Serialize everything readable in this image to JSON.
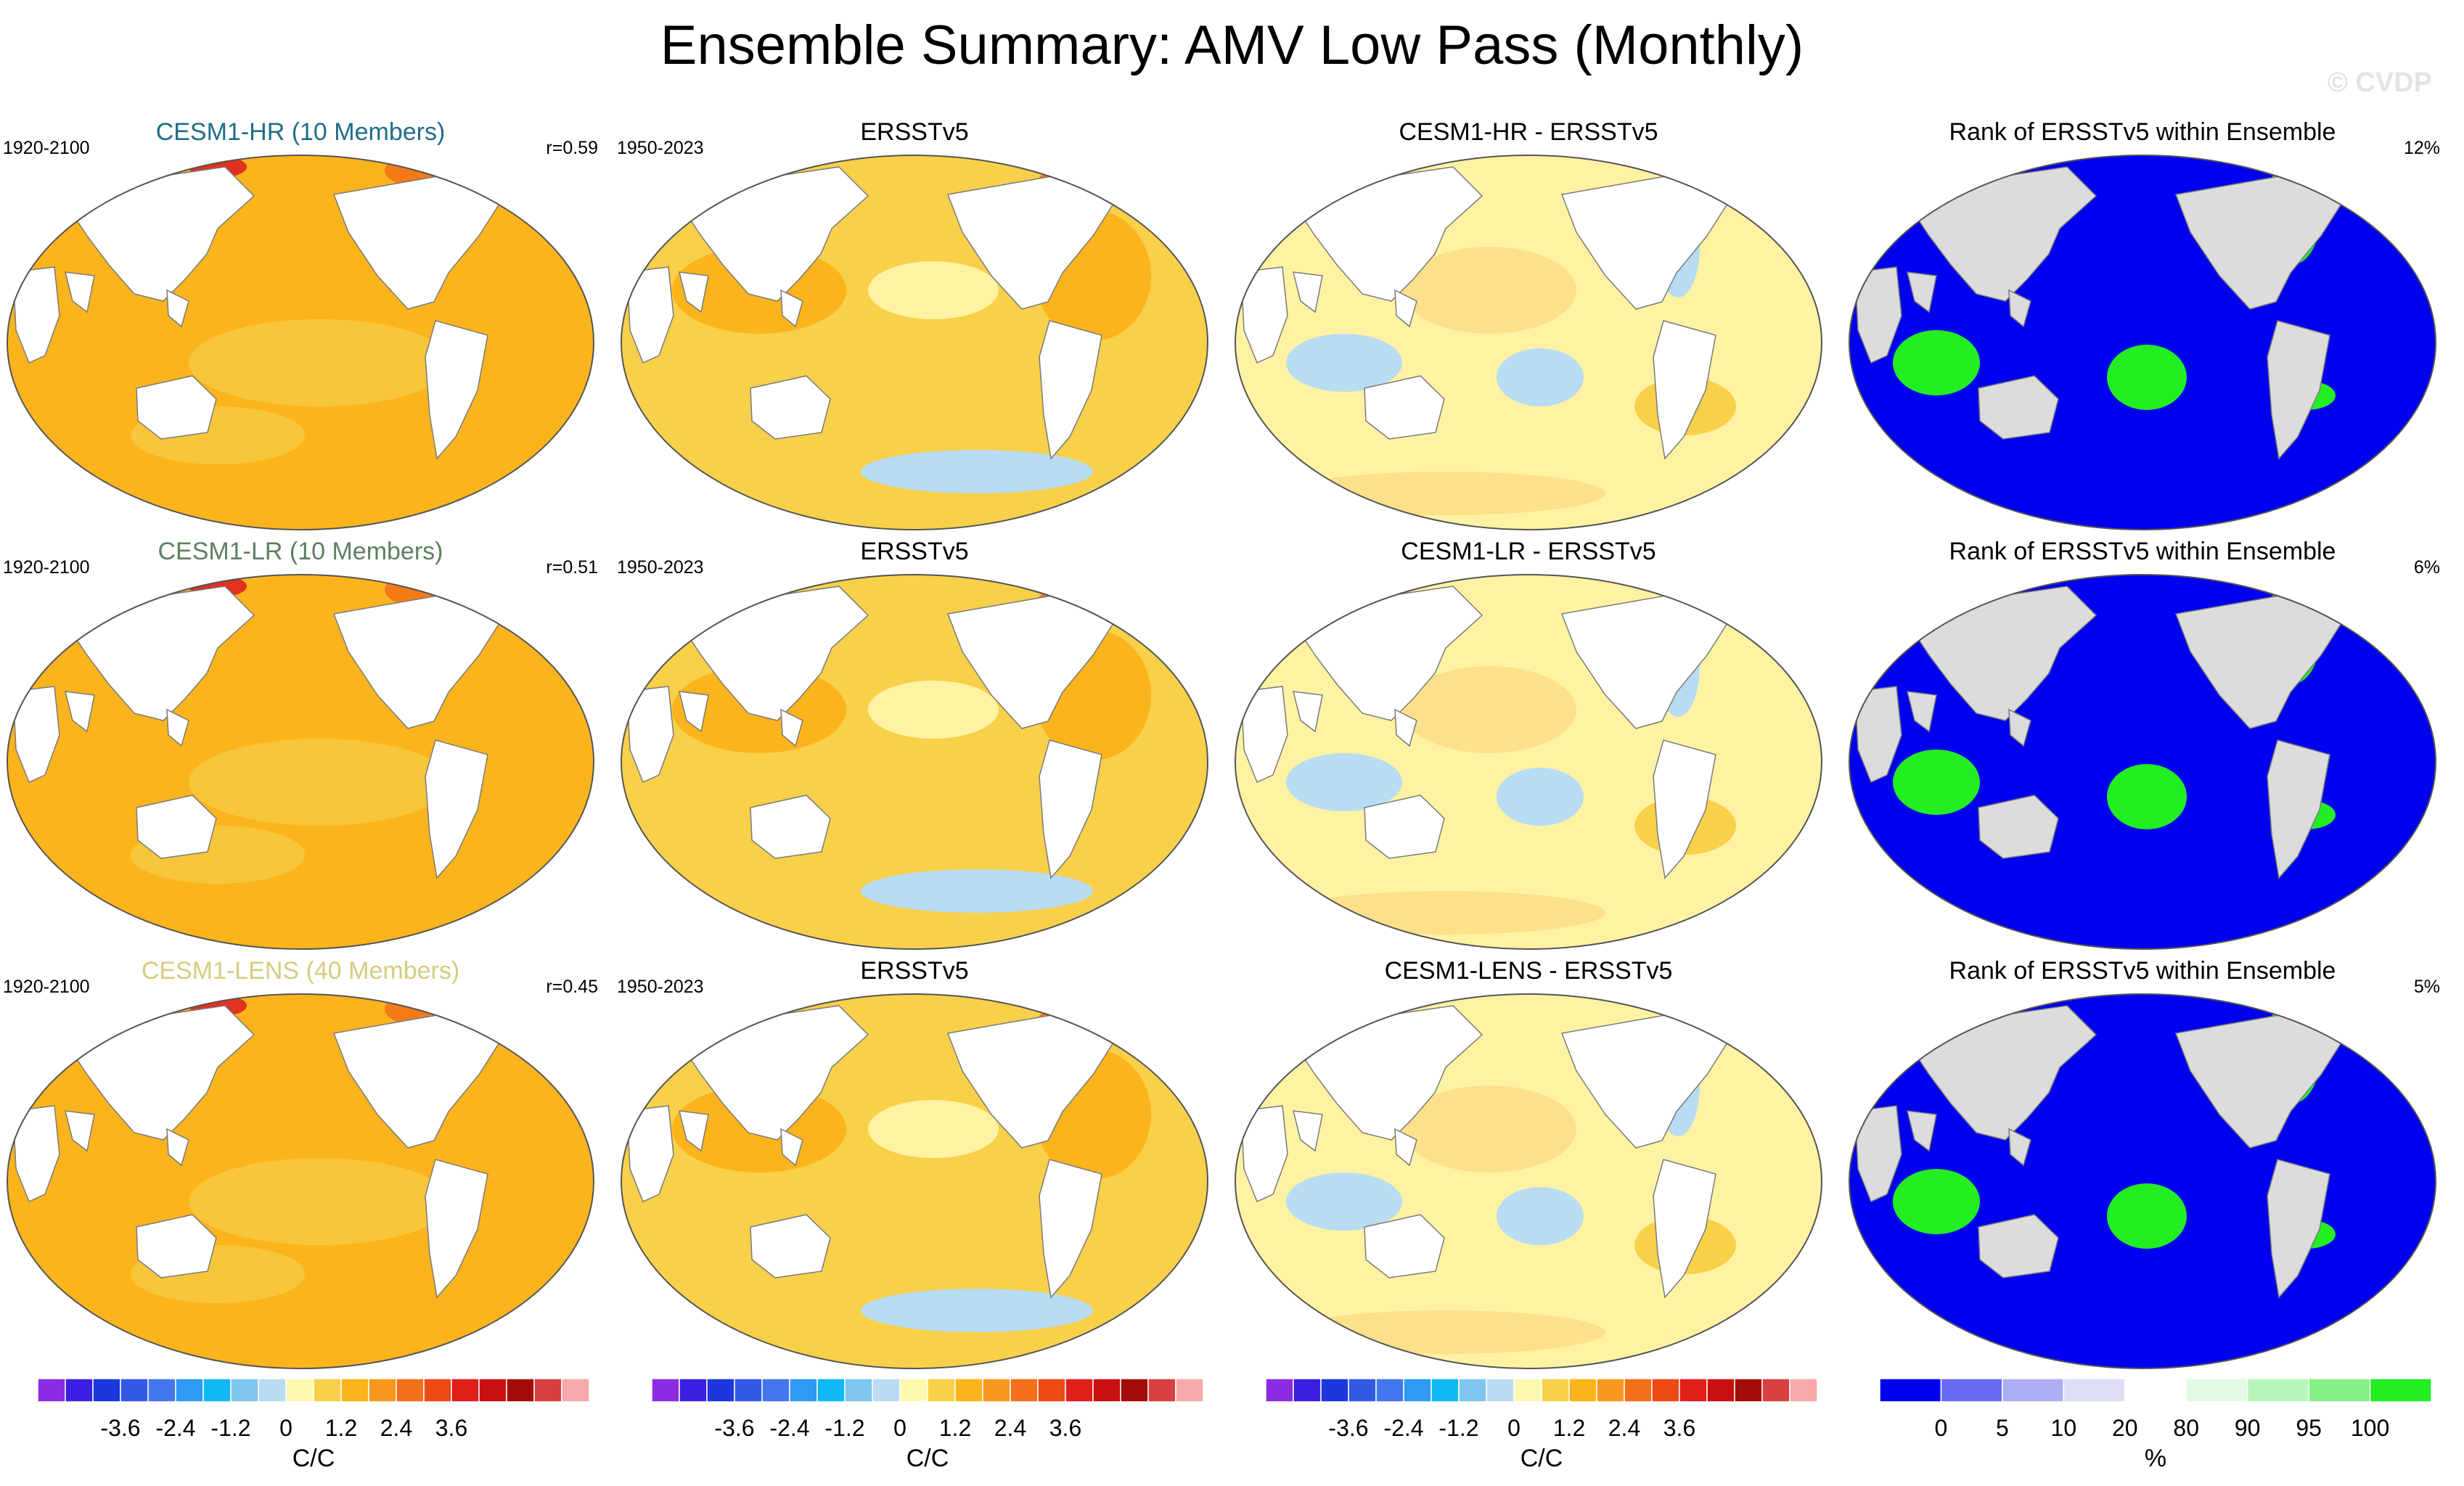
{
  "title": "Ensemble Summary: AMV Low Pass (Monthly)",
  "watermark": "© CVDP",
  "colors": {
    "ocean_warm": "#fcb41c",
    "ocean_mid": "#f8d04a",
    "ocean_light": "#fff3a3",
    "negative": "#b8dcf2",
    "strong_warm": "#f47a18",
    "hot": "#e33020",
    "rank_low": "#0000f0",
    "rank_high": "#22ee22",
    "land_rank": "#dcdcdc",
    "row1_title": "#1f6d8a",
    "row2_title": "#5e7f60",
    "row3_title": "#d6cc7e"
  },
  "rows": [
    {
      "ensemble": {
        "title": "CESM1-HR (10 Members)",
        "period": "1920-2100",
        "corr": "r=0.59"
      },
      "obs": {
        "title": "ERSSTv5",
        "period": "1950-2023"
      },
      "diff": {
        "title": "CESM1-HR - ERSSTv5"
      },
      "rank": {
        "title": "Rank of ERSSTv5 within Ensemble",
        "pct": "12%"
      }
    },
    {
      "ensemble": {
        "title": "CESM1-LR (10 Members)",
        "period": "1920-2100",
        "corr": "r=0.51"
      },
      "obs": {
        "title": "ERSSTv5",
        "period": "1950-2023"
      },
      "diff": {
        "title": "CESM1-LR - ERSSTv5"
      },
      "rank": {
        "title": "Rank of ERSSTv5 within Ensemble",
        "pct": "6%"
      }
    },
    {
      "ensemble": {
        "title": "CESM1-LENS (40 Members)",
        "period": "1920-2100",
        "corr": "r=0.45"
      },
      "obs": {
        "title": "ERSSTv5",
        "period": "1950-2023"
      },
      "diff": {
        "title": "CESM1-LENS - ERSSTv5"
      },
      "rank": {
        "title": "Rank of ERSSTv5 within Ensemble",
        "pct": "5%"
      }
    }
  ],
  "colorbar_sst": {
    "unit": "C/C",
    "colors": [
      "#8a2be2",
      "#3a1fe0",
      "#1d37dc",
      "#3358e6",
      "#4476ee",
      "#2f9af4",
      "#10b8f8",
      "#7ec6f0",
      "#b8dcf2",
      "#fff9b0",
      "#f8d04a",
      "#fcb41c",
      "#f8961e",
      "#f4701a",
      "#ee4a16",
      "#e01e1a",
      "#c81010",
      "#a30a0a",
      "#d64040",
      "#f7a8a8"
    ],
    "ticks": [
      "-3.6",
      "-2.4",
      "-1.2",
      "0",
      "1.2",
      "2.4",
      "3.6"
    ],
    "tick_boundaries": [
      3,
      5,
      7,
      9,
      11,
      13,
      15
    ]
  },
  "colorbar_rank": {
    "unit": "%",
    "colors": [
      "#0000f0",
      "#6a6af4",
      "#aeaef4",
      "#dedef8",
      "#ffffff",
      "#e2fbe2",
      "#b8f5b8",
      "#86f086",
      "#22ee22"
    ],
    "ticks": [
      "0",
      "5",
      "10",
      "20",
      "80",
      "90",
      "95",
      "100"
    ],
    "tick_boundaries": [
      1,
      2,
      3,
      4,
      5,
      6,
      7,
      8
    ]
  }
}
